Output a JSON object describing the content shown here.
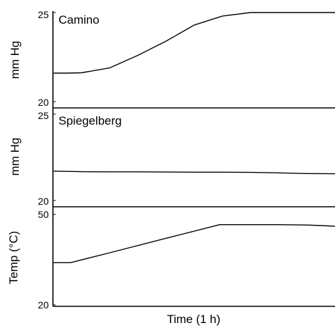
{
  "chart_data": [
    {
      "type": "line",
      "panel_label": "Camino",
      "ylabel": "mm Hg",
      "ylim": [
        20,
        25
      ],
      "y_tick_labels": [
        "25",
        "20"
      ],
      "x": [
        0,
        0.5,
        1,
        2,
        3,
        4,
        5,
        6,
        7,
        7.5,
        8,
        9,
        10
      ],
      "series": [
        {
          "values": [
            21.6,
            21.6,
            21.62,
            21.9,
            22.6,
            23.4,
            24.3,
            24.8,
            25.0,
            25.0,
            25.0,
            25.0,
            25.0
          ]
        }
      ]
    },
    {
      "type": "line",
      "panel_label": "Spiegelberg",
      "ylabel": "mm Hg",
      "ylim": [
        20,
        25
      ],
      "y_tick_labels": [
        "25",
        "20"
      ],
      "x": [
        0,
        1,
        2,
        3,
        4,
        5,
        6,
        7,
        8,
        9,
        10
      ],
      "series": [
        {
          "values": [
            21.7,
            21.67,
            21.66,
            21.66,
            21.65,
            21.64,
            21.64,
            21.63,
            21.6,
            21.56,
            21.55
          ]
        }
      ]
    },
    {
      "type": "line",
      "ylabel": "Temp (°C)",
      "xlabel": "Time (1 h)",
      "ylim": [
        20,
        50
      ],
      "y_tick_labels": [
        "50",
        "20"
      ],
      "x": [
        0,
        0.6,
        2,
        4,
        5.9,
        8,
        9,
        9.5,
        10
      ],
      "series": [
        {
          "values": [
            34,
            34,
            37.3,
            42.1,
            46.6,
            46.6,
            46.5,
            46.3,
            46.1
          ]
        }
      ]
    }
  ]
}
